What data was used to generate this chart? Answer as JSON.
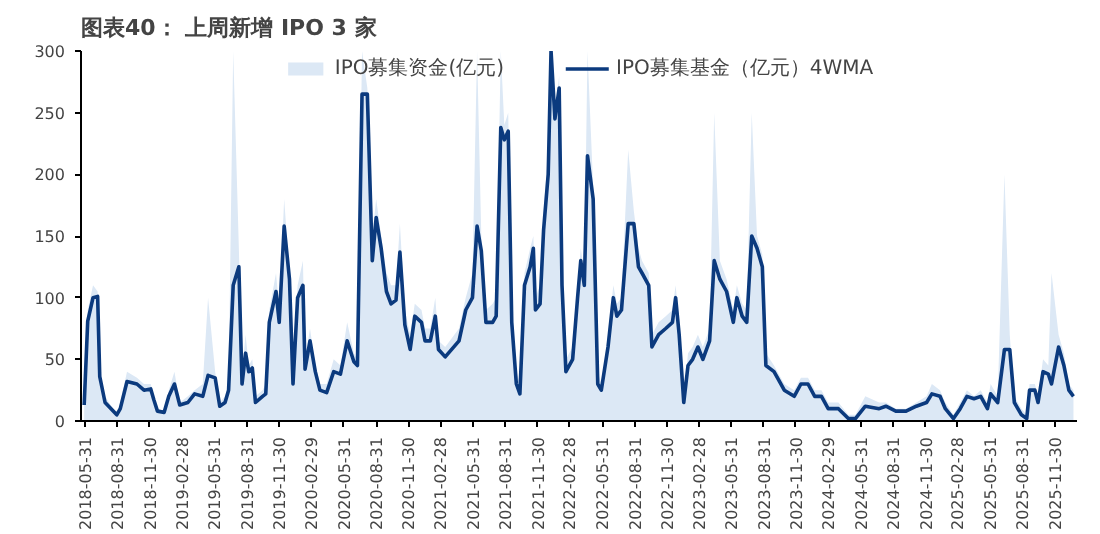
{
  "chart_data": {
    "type": "line",
    "title": "图表40： 上周新增 IPO 3 家",
    "x": [
      "2018-05-29",
      "2018-06-08",
      "2018-06-23",
      "2018-07-06",
      "2018-07-12",
      "2018-07-27",
      "2018-08-29",
      "2018-09-08",
      "2018-09-27",
      "2018-10-25",
      "2018-11-14",
      "2018-12-03",
      "2018-12-12",
      "2018-12-22",
      "2019-01-10",
      "2019-01-23",
      "2019-02-08",
      "2019-02-23",
      "2019-03-18",
      "2019-04-06",
      "2019-04-29",
      "2019-05-14",
      "2019-06-03",
      "2019-06-16",
      "2019-07-01",
      "2019-07-11",
      "2019-07-24",
      "2019-08-09",
      "2019-08-18",
      "2019-08-28",
      "2019-09-06",
      "2019-09-16",
      "2019-09-25",
      "2019-10-15",
      "2019-10-24",
      "2019-11-03",
      "2019-11-22",
      "2019-12-01",
      "2019-12-15",
      "2019-12-30",
      "2020-01-09",
      "2020-01-22",
      "2020-02-06",
      "2020-02-12",
      "2020-02-26",
      "2020-03-12",
      "2020-03-25",
      "2020-04-13",
      "2020-05-03",
      "2020-05-22",
      "2020-06-10",
      "2020-06-29",
      "2020-07-09",
      "2020-07-22",
      "2020-08-06",
      "2020-08-20",
      "2020-08-31",
      "2020-09-14",
      "2020-09-29",
      "2020-10-12",
      "2020-10-26",
      "2020-11-06",
      "2020-11-20",
      "2020-12-05",
      "2020-12-18",
      "2021-01-06",
      "2021-01-16",
      "2021-01-31",
      "2021-02-14",
      "2021-02-23",
      "2021-03-14",
      "2021-04-22",
      "2021-05-11",
      "2021-05-30",
      "2021-06-12",
      "2021-06-24",
      "2021-07-07",
      "2021-07-26",
      "2021-08-05",
      "2021-08-18",
      "2021-08-28",
      "2021-09-08",
      "2021-09-18",
      "2021-10-01",
      "2021-10-11",
      "2021-10-24",
      "2021-11-09",
      "2021-11-18",
      "2021-11-24",
      "2021-12-07",
      "2021-12-17",
      "2021-12-30",
      "2022-01-07",
      "2022-01-18",
      "2022-01-30",
      "2022-02-07",
      "2022-02-18",
      "2022-03-09",
      "2022-03-23",
      "2022-04-01",
      "2022-04-11",
      "2022-04-20",
      "2022-05-06",
      "2022-05-19",
      "2022-05-29",
      "2022-06-17",
      "2022-07-02",
      "2022-07-12",
      "2022-07-25",
      "2022-08-13",
      "2022-08-29",
      "2022-09-11",
      "2022-09-21",
      "2022-10-10",
      "2022-10-19",
      "2022-11-07",
      "2022-11-27",
      "2022-12-16",
      "2022-12-25",
      "2023-01-04",
      "2023-01-17",
      "2023-01-29",
      "2023-02-11",
      "2023-02-26",
      "2023-03-12",
      "2023-03-31",
      "2023-04-13",
      "2023-04-29",
      "2023-05-18",
      "2023-06-06",
      "2023-06-16",
      "2023-07-01",
      "2023-07-14",
      "2023-07-28",
      "2023-08-12",
      "2023-08-27",
      "2023-09-06",
      "2023-09-29",
      "2023-10-28",
      "2023-11-25",
      "2023-12-14",
      "2024-01-03",
      "2024-01-22",
      "2024-02-10",
      "2024-02-29",
      "2024-03-29",
      "2024-04-26",
      "2024-05-16",
      "2024-06-13",
      "2024-07-22",
      "2024-08-10",
      "2024-09-07",
      "2024-10-06",
      "2024-11-04",
      "2024-12-03",
      "2024-12-18",
      "2025-01-10",
      "2025-01-25",
      "2025-02-17",
      "2025-03-08",
      "2025-03-27",
      "2025-04-16",
      "2025-05-05",
      "2025-05-24",
      "2025-06-02",
      "2025-06-22",
      "2025-07-11",
      "2025-07-26",
      "2025-08-08",
      "2025-08-28",
      "2025-09-12",
      "2025-09-20",
      "2025-10-05",
      "2025-10-14",
      "2025-10-28",
      "2025-11-12",
      "2025-11-21",
      "2025-12-11",
      "2025-12-26",
      "2026-01-09",
      "2026-01-22"
    ],
    "series": [
      {
        "name": "IPO募集资金(亿元)",
        "type": "area",
        "color": "#dce8f5",
        "values": [
          20,
          90,
          110,
          105,
          30,
          20,
          5,
          15,
          40,
          35,
          30,
          30,
          20,
          10,
          8,
          25,
          40,
          15,
          20,
          25,
          30,
          100,
          40,
          15,
          20,
          30,
          300,
          140,
          40,
          70,
          45,
          50,
          20,
          25,
          30,
          90,
          120,
          90,
          180,
          120,
          40,
          110,
          130,
          50,
          75,
          45,
          30,
          30,
          50,
          45,
          80,
          55,
          50,
          300,
          270,
          150,
          180,
          150,
          120,
          110,
          110,
          160,
          90,
          70,
          95,
          90,
          75,
          75,
          100,
          65,
          60,
          75,
          100,
          120,
          300,
          150,
          90,
          95,
          100,
          300,
          240,
          250,
          90,
          40,
          30,
          120,
          140,
          150,
          100,
          110,
          170,
          220,
          300,
          250,
          280,
          120,
          50,
          60,
          110,
          140,
          120,
          300,
          190,
          40,
          30,
          70,
          110,
          95,
          100,
          220,
          170,
          140,
          130,
          120,
          70,
          80,
          85,
          90,
          110,
          80,
          20,
          55,
          60,
          70,
          60,
          75,
          250,
          130,
          115,
          90,
          110,
          95,
          90,
          250,
          150,
          135,
          55,
          45,
          30,
          25,
          35,
          35,
          25,
          25,
          15,
          15,
          5,
          5,
          20,
          15,
          15,
          10,
          10,
          15,
          20,
          30,
          25,
          15,
          5,
          15,
          25,
          20,
          25,
          15,
          30,
          20,
          200,
          70,
          20,
          10,
          5,
          30,
          30,
          20,
          50,
          45,
          120,
          70,
          55,
          30,
          25
        ]
      },
      {
        "name": "IPO募集基金（亿元）4WMA",
        "color": "#0b3a7e",
        "values": [
          13,
          81,
          100,
          101,
          36,
          15,
          5,
          10,
          32,
          30,
          25,
          26,
          17,
          8,
          7,
          20,
          30,
          13,
          15,
          22,
          20,
          37,
          35,
          12,
          15,
          25,
          110,
          125,
          30,
          55,
          40,
          43,
          15,
          20,
          22,
          80,
          105,
          80,
          158,
          115,
          30,
          100,
          110,
          42,
          65,
          40,
          25,
          23,
          40,
          38,
          65,
          48,
          45,
          265,
          265,
          130,
          165,
          140,
          105,
          95,
          98,
          137,
          78,
          58,
          85,
          80,
          65,
          65,
          85,
          58,
          52,
          65,
          90,
          100,
          158,
          138,
          80,
          80,
          85,
          238,
          228,
          235,
          80,
          30,
          22,
          110,
          125,
          140,
          90,
          95,
          155,
          200,
          300,
          245,
          270,
          110,
          40,
          50,
          100,
          130,
          110,
          215,
          180,
          30,
          25,
          60,
          100,
          85,
          90,
          160,
          160,
          125,
          120,
          110,
          60,
          70,
          75,
          80,
          100,
          70,
          15,
          45,
          50,
          60,
          50,
          65,
          130,
          115,
          105,
          80,
          100,
          85,
          80,
          150,
          140,
          125,
          45,
          40,
          25,
          20,
          30,
          30,
          20,
          20,
          10,
          10,
          2,
          2,
          12,
          10,
          12,
          8,
          8,
          12,
          15,
          22,
          20,
          10,
          2,
          10,
          20,
          18,
          20,
          10,
          22,
          15,
          58,
          58,
          15,
          5,
          2,
          25,
          25,
          15,
          40,
          38,
          30,
          60,
          45,
          25,
          20
        ]
      }
    ],
    "xlim": [
      "2018-05-20",
      "2026-02-01"
    ],
    "xticks": [
      "2018-05-31",
      "2018-08-31",
      "2018-11-30",
      "2019-02-28",
      "2019-05-31",
      "2019-08-31",
      "2019-11-30",
      "2020-02-29",
      "2020-05-31",
      "2020-08-31",
      "2020-11-30",
      "2021-02-28",
      "2021-05-31",
      "2021-08-31",
      "2021-11-30",
      "2022-02-28",
      "2022-05-31",
      "2022-08-31",
      "2022-11-30",
      "2023-02-28",
      "2023-05-31",
      "2023-08-31",
      "2023-11-30",
      "2024-02-29",
      "2024-05-31",
      "2024-08-31",
      "2024-11-30",
      "2025-02-28",
      "2025-05-31",
      "2025-08-31",
      "2025-11-30"
    ],
    "ylim": [
      0,
      300
    ],
    "yticks": [
      0,
      50,
      100,
      150,
      200,
      250,
      300
    ],
    "grid": false,
    "legend": "top"
  }
}
